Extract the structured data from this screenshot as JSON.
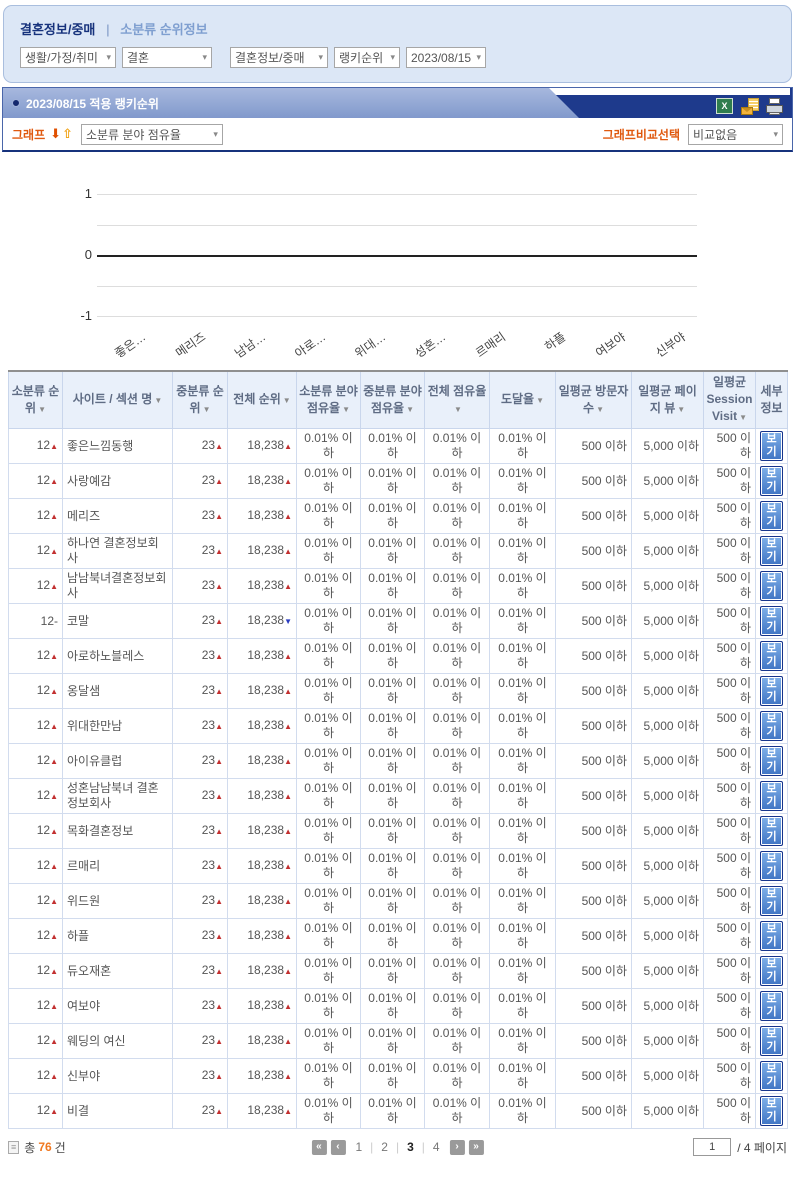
{
  "titlebar": {
    "category": "결혼정보/중매",
    "divider": "|",
    "section": "소분류 순위정보"
  },
  "filters": [
    {
      "value": "생활/가정/취미"
    },
    {
      "value": "결혼"
    },
    {
      "value": "결혼정보/중매"
    },
    {
      "value": "랭키순위"
    },
    {
      "value": "2023/08/15"
    }
  ],
  "rank_header": {
    "title": "2023/08/15 적용 랭키순위",
    "icons": [
      "excel-icon",
      "mail-icon",
      "print-icon"
    ]
  },
  "graph_controls": {
    "graph_label": "그래프",
    "metric_selected": "소분류 분야 점유율",
    "compare_label": "그래프비교선택",
    "compare_selected": "비교없음"
  },
  "chart_data": {
    "type": "bar",
    "title": "소분류 분야 점유율",
    "categories": [
      "좋은…",
      "메리즈",
      "남남…",
      "아로…",
      "위대…",
      "성혼…",
      "르매리",
      "하플",
      "여보야",
      "신부야"
    ],
    "values": [
      0,
      0,
      0,
      0,
      0,
      0,
      0,
      0,
      0,
      0
    ],
    "xlabel": "",
    "ylabel": "",
    "ylim": [
      -1,
      1
    ],
    "yticks": [
      1,
      0,
      -1
    ],
    "gridlines": [
      1,
      0.5,
      0,
      -0.5,
      -1
    ],
    "grid": true,
    "legend": "none"
  },
  "icons": {
    "sort": "▼",
    "up": "▲",
    "down": "▼",
    "none": "-",
    "select_arrow": "▾",
    "arrow_down": "⬇",
    "arrow_up": "⇧",
    "pg_first": "«",
    "pg_prev": "‹",
    "pg_next": "›",
    "pg_last": "»",
    "list": "≡"
  },
  "table": {
    "headers": [
      "소분류 순위",
      "사이트 / 섹션 명",
      "중분류 순위",
      "전체 순위",
      "소분류 분야 점유율",
      "중분류 분야 점유율",
      "전체 점유율",
      "도달율",
      "일평균 방문자 수",
      "일평균 페이지 뷰",
      "일평균 Session Visit",
      "세부 정보"
    ],
    "sortable": [
      true,
      true,
      true,
      true,
      true,
      true,
      true,
      true,
      true,
      true,
      true,
      false
    ],
    "detail_label": "보기",
    "rows": [
      {
        "sub_rank": "12",
        "sub_dir": "up",
        "name": "좋은느낌동행",
        "mid_rank": "23",
        "mid_dir": "up",
        "total_rank": "18,238",
        "total_dir": "up",
        "sub_share": "0.01% 이하",
        "mid_share": "0.01% 이하",
        "total_share": "0.01% 이하",
        "reach": "0.01% 이하",
        "daily_visitors": "500 이하",
        "daily_pageviews": "5,000 이하",
        "daily_session": "500 이하"
      },
      {
        "sub_rank": "12",
        "sub_dir": "up",
        "name": "사랑예감",
        "mid_rank": "23",
        "mid_dir": "up",
        "total_rank": "18,238",
        "total_dir": "up",
        "sub_share": "0.01% 이하",
        "mid_share": "0.01% 이하",
        "total_share": "0.01% 이하",
        "reach": "0.01% 이하",
        "daily_visitors": "500 이하",
        "daily_pageviews": "5,000 이하",
        "daily_session": "500 이하"
      },
      {
        "sub_rank": "12",
        "sub_dir": "up",
        "name": "메리즈",
        "mid_rank": "23",
        "mid_dir": "up",
        "total_rank": "18,238",
        "total_dir": "up",
        "sub_share": "0.01% 이하",
        "mid_share": "0.01% 이하",
        "total_share": "0.01% 이하",
        "reach": "0.01% 이하",
        "daily_visitors": "500 이하",
        "daily_pageviews": "5,000 이하",
        "daily_session": "500 이하"
      },
      {
        "sub_rank": "12",
        "sub_dir": "up",
        "name": "하나연 결혼정보회사",
        "mid_rank": "23",
        "mid_dir": "up",
        "total_rank": "18,238",
        "total_dir": "up",
        "sub_share": "0.01% 이하",
        "mid_share": "0.01% 이하",
        "total_share": "0.01% 이하",
        "reach": "0.01% 이하",
        "daily_visitors": "500 이하",
        "daily_pageviews": "5,000 이하",
        "daily_session": "500 이하"
      },
      {
        "sub_rank": "12",
        "sub_dir": "up",
        "name": "남남북녀결혼정보회사",
        "mid_rank": "23",
        "mid_dir": "up",
        "total_rank": "18,238",
        "total_dir": "up",
        "sub_share": "0.01% 이하",
        "mid_share": "0.01% 이하",
        "total_share": "0.01% 이하",
        "reach": "0.01% 이하",
        "daily_visitors": "500 이하",
        "daily_pageviews": "5,000 이하",
        "daily_session": "500 이하"
      },
      {
        "sub_rank": "12",
        "sub_dir": "none",
        "name": "코말",
        "mid_rank": "23",
        "mid_dir": "up",
        "total_rank": "18,238",
        "total_dir": "down",
        "sub_share": "0.01% 이하",
        "mid_share": "0.01% 이하",
        "total_share": "0.01% 이하",
        "reach": "0.01% 이하",
        "daily_visitors": "500 이하",
        "daily_pageviews": "5,000 이하",
        "daily_session": "500 이하"
      },
      {
        "sub_rank": "12",
        "sub_dir": "up",
        "name": "아로하노블레스",
        "mid_rank": "23",
        "mid_dir": "up",
        "total_rank": "18,238",
        "total_dir": "up",
        "sub_share": "0.01% 이하",
        "mid_share": "0.01% 이하",
        "total_share": "0.01% 이하",
        "reach": "0.01% 이하",
        "daily_visitors": "500 이하",
        "daily_pageviews": "5,000 이하",
        "daily_session": "500 이하"
      },
      {
        "sub_rank": "12",
        "sub_dir": "up",
        "name": "옹달샘",
        "mid_rank": "23",
        "mid_dir": "up",
        "total_rank": "18,238",
        "total_dir": "up",
        "sub_share": "0.01% 이하",
        "mid_share": "0.01% 이하",
        "total_share": "0.01% 이하",
        "reach": "0.01% 이하",
        "daily_visitors": "500 이하",
        "daily_pageviews": "5,000 이하",
        "daily_session": "500 이하"
      },
      {
        "sub_rank": "12",
        "sub_dir": "up",
        "name": "위대한만남",
        "mid_rank": "23",
        "mid_dir": "up",
        "total_rank": "18,238",
        "total_dir": "up",
        "sub_share": "0.01% 이하",
        "mid_share": "0.01% 이하",
        "total_share": "0.01% 이하",
        "reach": "0.01% 이하",
        "daily_visitors": "500 이하",
        "daily_pageviews": "5,000 이하",
        "daily_session": "500 이하"
      },
      {
        "sub_rank": "12",
        "sub_dir": "up",
        "name": "아이유클럽",
        "mid_rank": "23",
        "mid_dir": "up",
        "total_rank": "18,238",
        "total_dir": "up",
        "sub_share": "0.01% 이하",
        "mid_share": "0.01% 이하",
        "total_share": "0.01% 이하",
        "reach": "0.01% 이하",
        "daily_visitors": "500 이하",
        "daily_pageviews": "5,000 이하",
        "daily_session": "500 이하"
      },
      {
        "sub_rank": "12",
        "sub_dir": "up",
        "name": "성혼남남북녀 결혼정보회사",
        "mid_rank": "23",
        "mid_dir": "up",
        "total_rank": "18,238",
        "total_dir": "up",
        "sub_share": "0.01% 이하",
        "mid_share": "0.01% 이하",
        "total_share": "0.01% 이하",
        "reach": "0.01% 이하",
        "daily_visitors": "500 이하",
        "daily_pageviews": "5,000 이하",
        "daily_session": "500 이하"
      },
      {
        "sub_rank": "12",
        "sub_dir": "up",
        "name": "목화결혼정보",
        "mid_rank": "23",
        "mid_dir": "up",
        "total_rank": "18,238",
        "total_dir": "up",
        "sub_share": "0.01% 이하",
        "mid_share": "0.01% 이하",
        "total_share": "0.01% 이하",
        "reach": "0.01% 이하",
        "daily_visitors": "500 이하",
        "daily_pageviews": "5,000 이하",
        "daily_session": "500 이하"
      },
      {
        "sub_rank": "12",
        "sub_dir": "up",
        "name": "르매리",
        "mid_rank": "23",
        "mid_dir": "up",
        "total_rank": "18,238",
        "total_dir": "up",
        "sub_share": "0.01% 이하",
        "mid_share": "0.01% 이하",
        "total_share": "0.01% 이하",
        "reach": "0.01% 이하",
        "daily_visitors": "500 이하",
        "daily_pageviews": "5,000 이하",
        "daily_session": "500 이하"
      },
      {
        "sub_rank": "12",
        "sub_dir": "up",
        "name": "위드원",
        "mid_rank": "23",
        "mid_dir": "up",
        "total_rank": "18,238",
        "total_dir": "up",
        "sub_share": "0.01% 이하",
        "mid_share": "0.01% 이하",
        "total_share": "0.01% 이하",
        "reach": "0.01% 이하",
        "daily_visitors": "500 이하",
        "daily_pageviews": "5,000 이하",
        "daily_session": "500 이하"
      },
      {
        "sub_rank": "12",
        "sub_dir": "up",
        "name": "하플",
        "mid_rank": "23",
        "mid_dir": "up",
        "total_rank": "18,238",
        "total_dir": "up",
        "sub_share": "0.01% 이하",
        "mid_share": "0.01% 이하",
        "total_share": "0.01% 이하",
        "reach": "0.01% 이하",
        "daily_visitors": "500 이하",
        "daily_pageviews": "5,000 이하",
        "daily_session": "500 이하"
      },
      {
        "sub_rank": "12",
        "sub_dir": "up",
        "name": "듀오재혼",
        "mid_rank": "23",
        "mid_dir": "up",
        "total_rank": "18,238",
        "total_dir": "up",
        "sub_share": "0.01% 이하",
        "mid_share": "0.01% 이하",
        "total_share": "0.01% 이하",
        "reach": "0.01% 이하",
        "daily_visitors": "500 이하",
        "daily_pageviews": "5,000 이하",
        "daily_session": "500 이하"
      },
      {
        "sub_rank": "12",
        "sub_dir": "up",
        "name": "여보야",
        "mid_rank": "23",
        "mid_dir": "up",
        "total_rank": "18,238",
        "total_dir": "up",
        "sub_share": "0.01% 이하",
        "mid_share": "0.01% 이하",
        "total_share": "0.01% 이하",
        "reach": "0.01% 이하",
        "daily_visitors": "500 이하",
        "daily_pageviews": "5,000 이하",
        "daily_session": "500 이하"
      },
      {
        "sub_rank": "12",
        "sub_dir": "up",
        "name": "웨딩의 여신",
        "mid_rank": "23",
        "mid_dir": "up",
        "total_rank": "18,238",
        "total_dir": "up",
        "sub_share": "0.01% 이하",
        "mid_share": "0.01% 이하",
        "total_share": "0.01% 이하",
        "reach": "0.01% 이하",
        "daily_visitors": "500 이하",
        "daily_pageviews": "5,000 이하",
        "daily_session": "500 이하"
      },
      {
        "sub_rank": "12",
        "sub_dir": "up",
        "name": "신부야",
        "mid_rank": "23",
        "mid_dir": "up",
        "total_rank": "18,238",
        "total_dir": "up",
        "sub_share": "0.01% 이하",
        "mid_share": "0.01% 이하",
        "total_share": "0.01% 이하",
        "reach": "0.01% 이하",
        "daily_visitors": "500 이하",
        "daily_pageviews": "5,000 이하",
        "daily_session": "500 이하"
      },
      {
        "sub_rank": "12",
        "sub_dir": "up",
        "name": "비결",
        "mid_rank": "23",
        "mid_dir": "up",
        "total_rank": "18,238",
        "total_dir": "up",
        "sub_share": "0.01% 이하",
        "mid_share": "0.01% 이하",
        "total_share": "0.01% 이하",
        "reach": "0.01% 이하",
        "daily_visitors": "500 이하",
        "daily_pageviews": "5,000 이하",
        "daily_session": "500 이하"
      }
    ]
  },
  "footer": {
    "total_prefix": "총",
    "total_count": "76",
    "total_suffix": "건",
    "pages": [
      "1",
      "2",
      "3",
      "4"
    ],
    "current_page": "3",
    "page_input": "1",
    "page_total_label": "/ 4 페이지"
  },
  "colors": {
    "navy": "#1e3a8c",
    "periwinkle": "#8ba3d4",
    "panel_bg": "#dce7f6",
    "orange": "#e8611c",
    "up_red": "#c23030",
    "down_blue": "#2a3cc0",
    "header_bg": "#e9f0fa"
  }
}
